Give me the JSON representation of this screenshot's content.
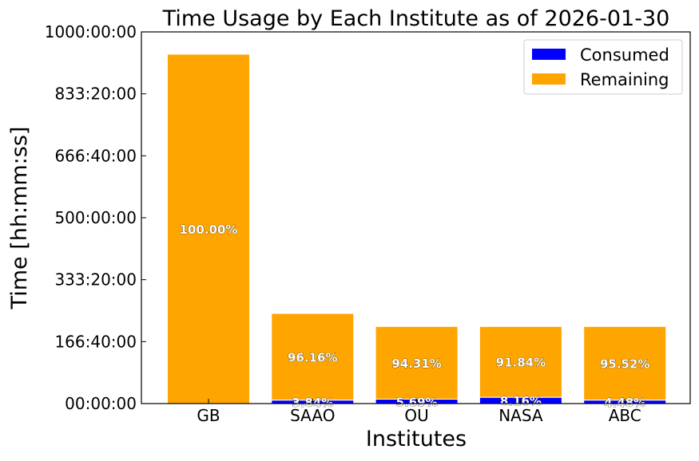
{
  "chart_data": {
    "type": "bar",
    "stacked": true,
    "title": "Time Usage by Each Institute as of 2026-01-30",
    "xlabel": "Institutes",
    "ylabel": "Time [hh:mm:ss]",
    "ylim_hours": [
      0,
      1000
    ],
    "yticks": [
      "00:00:00",
      "166:40:00",
      "333:20:00",
      "500:00:00",
      "666:40:00",
      "833:20:00",
      "1000:00:00"
    ],
    "categories": [
      "GB",
      "SAAO",
      "OU",
      "NASA",
      "ABC"
    ],
    "series": [
      {
        "name": "Consumed",
        "color": "#0000ff",
        "values_hours": [
          0,
          9.3,
          11.8,
          16.9,
          9.3
        ],
        "labels": [
          "",
          "3.84%",
          "5.69%",
          "8.16%",
          "4.48%"
        ]
      },
      {
        "name": "Remaining",
        "color": "#ffa500",
        "values_hours": [
          940,
          233.2,
          195.7,
          190.6,
          198.2
        ],
        "labels": [
          "100.00%",
          "96.16%",
          "94.31%",
          "91.84%",
          "95.52%"
        ]
      }
    ],
    "legend": "top-right",
    "grid": false
  }
}
